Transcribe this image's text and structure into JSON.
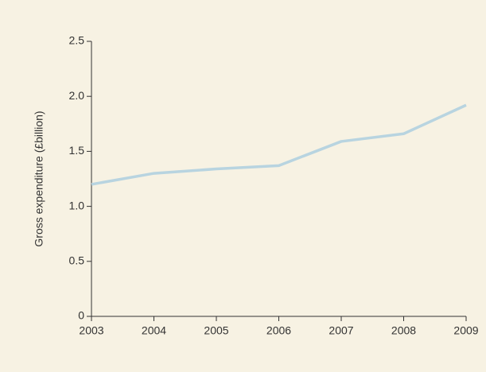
{
  "chart_data": {
    "type": "line",
    "y_label": "Gross expenditure (£billion)",
    "x": [
      2003,
      2004,
      2005,
      2006,
      2007,
      2008,
      2009
    ],
    "series": [
      {
        "name": "Gross expenditure",
        "color": "#b8d4e0",
        "values": [
          1.2,
          1.3,
          1.34,
          1.37,
          1.59,
          1.66,
          1.92
        ]
      }
    ],
    "xlim": [
      2003,
      2009
    ],
    "xticks": [
      2003,
      2004,
      2005,
      2006,
      2007,
      2008,
      2009
    ],
    "ylim": [
      0,
      2.5
    ],
    "yticks": [
      0,
      0.5,
      {
        "value": 1,
        "label": "1.0"
      },
      1.5,
      {
        "value": 2,
        "label": "2.0"
      },
      2.5
    ],
    "grid": false,
    "background": "#f7f2e3"
  }
}
